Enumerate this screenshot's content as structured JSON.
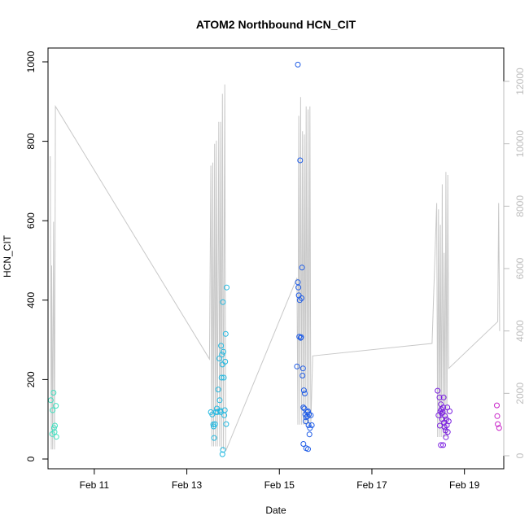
{
  "chart_data": {
    "type": "scatter",
    "title": "ATOM2 Northbound HCN_CIT",
    "xlabel": "Date",
    "ylabel": "HCN_CIT",
    "xlim": [
      10.0,
      19.85
    ],
    "ylim": [
      0,
      1000
    ],
    "y2lim": [
      0,
      12000
    ],
    "x_ticks": [
      {
        "value": 11,
        "label": "Feb 11"
      },
      {
        "value": 13,
        "label": "Feb 13"
      },
      {
        "value": 15,
        "label": "Feb 15"
      },
      {
        "value": 17,
        "label": "Feb 17"
      },
      {
        "value": 19,
        "label": "Feb 19"
      }
    ],
    "y_ticks": [
      "0",
      "200",
      "400",
      "600",
      "800",
      "1000"
    ],
    "y2_ticks": [
      "0",
      "2000",
      "4000",
      "6000",
      "8000",
      "10000",
      "12000"
    ],
    "grid": false,
    "series": [
      {
        "color": "#40e0c0",
        "points": [
          [
            10.06,
            148
          ],
          [
            10.09,
            63
          ],
          [
            10.1,
            123
          ],
          [
            10.12,
            167
          ],
          [
            10.13,
            78
          ],
          [
            10.14,
            68
          ],
          [
            10.15,
            84
          ],
          [
            10.17,
            134
          ],
          [
            10.18,
            56
          ]
        ]
      },
      {
        "color": "#22b8e0",
        "points": [
          [
            13.52,
            118
          ],
          [
            13.55,
            112
          ],
          [
            13.57,
            87
          ],
          [
            13.58,
            82
          ],
          [
            13.59,
            53
          ],
          [
            13.61,
            88
          ],
          [
            13.63,
            118
          ],
          [
            13.65,
            127
          ],
          [
            13.66,
            118
          ],
          [
            13.68,
            175
          ],
          [
            13.7,
            253
          ],
          [
            13.71,
            148
          ],
          [
            13.72,
            122
          ],
          [
            13.73,
            118
          ],
          [
            13.74,
            285
          ],
          [
            13.75,
            205
          ],
          [
            13.76,
            263
          ],
          [
            13.77,
            238
          ],
          [
            13.78,
            395
          ],
          [
            13.79,
            270
          ],
          [
            13.8,
            205
          ],
          [
            13.81,
            110
          ],
          [
            13.82,
            123
          ],
          [
            13.83,
            245
          ],
          [
            13.84,
            315
          ],
          [
            13.85,
            88
          ],
          [
            13.86,
            432
          ],
          [
            13.77,
            12
          ],
          [
            13.78,
            23
          ]
        ]
      },
      {
        "color": "#1f5ce6",
        "points": [
          [
            15.4,
            993
          ],
          [
            15.38,
            233
          ],
          [
            15.4,
            445
          ],
          [
            15.41,
            432
          ],
          [
            15.42,
            412
          ],
          [
            15.43,
            308
          ],
          [
            15.44,
            400
          ],
          [
            15.45,
            752
          ],
          [
            15.46,
            305
          ],
          [
            15.47,
            307
          ],
          [
            15.48,
            405
          ],
          [
            15.49,
            482
          ],
          [
            15.5,
            210
          ],
          [
            15.51,
            228
          ],
          [
            15.52,
            130
          ],
          [
            15.53,
            173
          ],
          [
            15.54,
            127
          ],
          [
            15.55,
            165
          ],
          [
            15.56,
            112
          ],
          [
            15.57,
            95
          ],
          [
            15.58,
            105
          ],
          [
            15.6,
            118
          ],
          [
            15.61,
            108
          ],
          [
            15.62,
            120
          ],
          [
            15.63,
            85
          ],
          [
            15.64,
            112
          ],
          [
            15.65,
            62
          ],
          [
            15.66,
            78
          ],
          [
            15.68,
            110
          ],
          [
            15.7,
            85
          ],
          [
            15.52,
            38
          ],
          [
            15.58,
            27
          ],
          [
            15.62,
            25
          ]
        ]
      },
      {
        "color": "#7a1ee0",
        "points": [
          [
            18.42,
            172
          ],
          [
            18.44,
            110
          ],
          [
            18.46,
            155
          ],
          [
            18.47,
            84
          ],
          [
            18.48,
            120
          ],
          [
            18.49,
            138
          ],
          [
            18.5,
            125
          ],
          [
            18.51,
            115
          ],
          [
            18.52,
            100
          ],
          [
            18.53,
            118
          ],
          [
            18.54,
            130
          ],
          [
            18.55,
            155
          ],
          [
            18.56,
            92
          ],
          [
            18.57,
            80
          ],
          [
            18.58,
            108
          ],
          [
            18.59,
            72
          ],
          [
            18.6,
            55
          ],
          [
            18.61,
            100
          ],
          [
            18.62,
            85
          ],
          [
            18.63,
            130
          ],
          [
            18.64,
            68
          ],
          [
            18.66,
            95
          ],
          [
            18.68,
            120
          ],
          [
            18.49,
            35
          ],
          [
            18.54,
            35
          ]
        ]
      },
      {
        "color": "#c822c8",
        "points": [
          [
            19.7,
            135
          ],
          [
            19.71,
            108
          ],
          [
            19.72,
            88
          ],
          [
            19.75,
            78
          ]
        ]
      }
    ],
    "line_series": {
      "color": "#c8c8c8",
      "axis": "right",
      "points": [
        [
          10.05,
          9600
        ],
        [
          10.07,
          200
        ],
        [
          10.08,
          6100
        ],
        [
          10.1,
          200
        ],
        [
          10.12,
          7500
        ],
        [
          10.14,
          200
        ],
        [
          10.16,
          11200
        ],
        [
          13.49,
          3100
        ],
        [
          13.52,
          9300
        ],
        [
          13.54,
          300
        ],
        [
          13.56,
          9400
        ],
        [
          13.58,
          300
        ],
        [
          13.6,
          10000
        ],
        [
          13.62,
          300
        ],
        [
          13.64,
          10100
        ],
        [
          13.66,
          300
        ],
        [
          13.69,
          10700
        ],
        [
          13.71,
          300
        ],
        [
          13.73,
          10700
        ],
        [
          13.75,
          200
        ],
        [
          13.77,
          11600
        ],
        [
          13.79,
          200
        ],
        [
          13.82,
          11900
        ],
        [
          13.84,
          150
        ],
        [
          15.38,
          5700
        ],
        [
          15.4,
          1000
        ],
        [
          15.42,
          10900
        ],
        [
          15.44,
          1000
        ],
        [
          15.46,
          11500
        ],
        [
          15.48,
          1000
        ],
        [
          15.5,
          10400
        ],
        [
          15.52,
          1000
        ],
        [
          15.54,
          10300
        ],
        [
          15.56,
          1000
        ],
        [
          15.58,
          11200
        ],
        [
          15.6,
          1000
        ],
        [
          15.62,
          11100
        ],
        [
          15.64,
          1000
        ],
        [
          15.66,
          11200
        ],
        [
          15.68,
          1000
        ],
        [
          15.72,
          3200
        ],
        [
          18.3,
          3600
        ],
        [
          18.4,
          8100
        ],
        [
          18.42,
          600
        ],
        [
          18.44,
          7900
        ],
        [
          18.46,
          600
        ],
        [
          18.48,
          7400
        ],
        [
          18.5,
          600
        ],
        [
          18.52,
          8700
        ],
        [
          18.54,
          600
        ],
        [
          18.56,
          6500
        ],
        [
          18.58,
          600
        ],
        [
          18.6,
          9100
        ],
        [
          18.62,
          600
        ],
        [
          18.64,
          9000
        ],
        [
          18.66,
          2800
        ],
        [
          19.72,
          4300
        ],
        [
          19.74,
          8100
        ],
        [
          19.76,
          4000
        ]
      ]
    }
  }
}
